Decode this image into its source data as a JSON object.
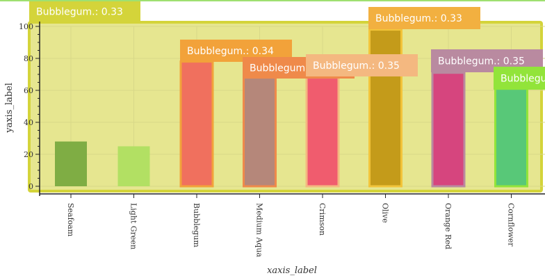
{
  "chart_data": {
    "type": "bar",
    "categories": [
      "Seafoam",
      "Light Green",
      "Bubblegum",
      "Medium Aqua",
      "Crimson",
      "Olive",
      "Orange Red",
      "Cornflower"
    ],
    "values": [
      28,
      25,
      78,
      68,
      68,
      98,
      71,
      61
    ],
    "bar_colors": [
      "#7fad44",
      "#b2e063",
      "#f0705e",
      "#b5877a",
      "#f05c6e",
      "#c49b1a",
      "#d6457e",
      "#58c878"
    ],
    "highlight_colors": {
      "Bubblegum": "#f2a23a",
      "Medium Aqua": "#ef8a4a",
      "Crimson": "#f4b880",
      "Olive": "#f2c43a",
      "Orange Red": "#b98aa0",
      "Cornflower": "#92e43a"
    },
    "xlabel": "xaxis_label",
    "ylabel": "yaxis_label",
    "ylim": [
      0,
      100
    ],
    "yticks": [
      0,
      20,
      40,
      60,
      80,
      100
    ],
    "grid": true,
    "background": "#e6e690",
    "frame_color": "#d4d43a"
  },
  "tooltips": [
    {
      "category": "Seafoam",
      "text": "Bubblegum.: 0.33",
      "color": "#d4d43a"
    },
    {
      "category": "Bubblegum",
      "text": "Bubblegum.: 0.34",
      "color": "#f2a23a"
    },
    {
      "category": "Medium Aqua",
      "text": "Bubblegum",
      "color": "#ef8a4a"
    },
    {
      "category": "Crimson",
      "text": "Bubblegum.: 0.35",
      "color": "#f4b880"
    },
    {
      "category": "Olive",
      "text": "Bubblegum.: 0.33",
      "color": "#f2b040"
    },
    {
      "category": "Orange Red",
      "text": "Bubblegum.: 0.35",
      "color": "#b98aa0"
    },
    {
      "category": "Cornflower",
      "text": "Bubblegum",
      "color": "#92e43a"
    }
  ]
}
